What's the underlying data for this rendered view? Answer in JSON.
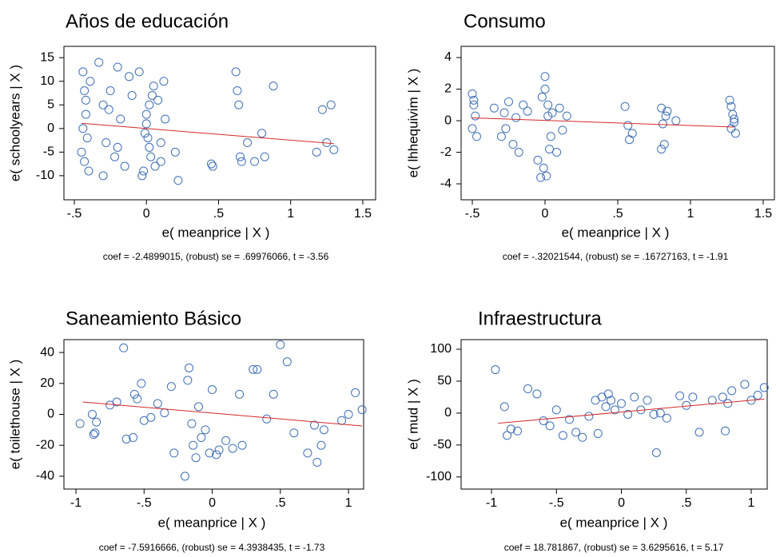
{
  "chart_data": [
    {
      "type": "scatter",
      "title": "Años de educación",
      "x_label": "e( meanprice | X )",
      "y_label": "e( schoolyears | X )",
      "note": "coef = -2.4899015, (robust) se = .69976066, t = -3.56",
      "color": "#3f6fb6",
      "x": [
        -0.44,
        -0.43,
        -0.42,
        -0.41,
        -0.45,
        -0.4,
        -0.42,
        -0.43,
        -0.39,
        -0.44,
        -0.33,
        -0.3,
        -0.28,
        -0.25,
        -0.2,
        -0.22,
        -0.18,
        -0.15,
        -0.12,
        -0.3,
        -0.26,
        -0.2,
        -0.1,
        -0.05,
        -0.02,
        0,
        0.01,
        0.02,
        0.03,
        0.05,
        -0.03,
        0,
        0.02,
        0.04,
        0.06,
        -0.01,
        0.08,
        0.1,
        0.12,
        0.1,
        0.13,
        0.2,
        0.22,
        0.45,
        0.46,
        0.62,
        0.63,
        0.64,
        0.65,
        0.66,
        0.7,
        0.75,
        0.8,
        0.82,
        0.88,
        1.18,
        1.22,
        1.28,
        1.3,
        1.25
      ],
      "y": [
        12,
        8,
        3,
        -2,
        -5,
        -9,
        6,
        -7,
        10,
        0,
        14,
        5,
        -3,
        8,
        13,
        -6,
        2,
        -8,
        11,
        -10,
        4,
        -4,
        7,
        12,
        -9,
        1,
        -2,
        5,
        -6,
        9,
        -10,
        3,
        -4,
        7,
        -8,
        -1,
        6,
        -3,
        10,
        -7,
        2,
        -5,
        -11,
        -7.5,
        -8,
        12,
        8,
        5,
        -6,
        -7,
        -3,
        -7,
        -1,
        -6,
        9,
        -5,
        4,
        5,
        -4.5,
        -3
      ],
      "fit_line": {
        "color": "#d62728",
        "x": [
          -0.45,
          1.3
        ],
        "y": [
          1.1,
          -3.2
        ]
      },
      "xlim": [
        -0.572,
        1.589
      ],
      "ylim": [
        -15.1,
        17.4
      ],
      "xticks": [
        {
          "value": -0.5,
          "label": "-.5"
        },
        0,
        {
          "value": 0.5,
          "label": ".5"
        },
        1,
        1.5
      ],
      "yticks": [
        -10,
        -5,
        0,
        5,
        10,
        15
      ]
    },
    {
      "type": "scatter",
      "title": "Consumo",
      "x_label": "e( meanprice | X )",
      "y_label": "e( lhhequivim | X )",
      "note": "coef = -.32021544, (robust) se = .16727163, t = -1.91",
      "color": "#3f6fb6",
      "x": [
        -0.5,
        -0.49,
        -0.48,
        -0.5,
        -0.47,
        -0.49,
        -0.35,
        -0.3,
        -0.28,
        -0.25,
        -0.22,
        -0.2,
        -0.18,
        -0.15,
        -0.27,
        -0.12,
        -0.05,
        -0.02,
        0,
        0.01,
        0.02,
        0.03,
        0,
        -0.01,
        0.02,
        0.04,
        -0.03,
        0.05,
        0.08,
        0.1,
        0.12,
        0.15,
        0.55,
        0.57,
        0.58,
        0.6,
        0.8,
        0.81,
        0.82,
        0.83,
        0.8,
        0.84,
        0.9,
        1.27,
        1.28,
        1.3,
        1.29,
        1.31,
        1.28,
        1.3
      ],
      "y": [
        1.7,
        1,
        0.3,
        -0.5,
        -1,
        1.3,
        0.8,
        -1,
        0.5,
        1.2,
        -1.5,
        0.2,
        -2,
        1,
        -0.5,
        0.6,
        -2.5,
        1.5,
        2.8,
        -3.5,
        0.3,
        -1.8,
        2,
        -3,
        1,
        -1,
        -3.6,
        0.5,
        -2,
        0.8,
        -0.6,
        0.3,
        0.9,
        -0.3,
        -1.2,
        -0.8,
        0.8,
        -0.2,
        -1.5,
        0.3,
        -1.8,
        0.6,
        0,
        1.3,
        0.9,
        -0.1,
        0.4,
        -0.8,
        -0.5,
        0.1
      ],
      "fit_line": {
        "color": "#d62728",
        "x": [
          -0.5,
          1.3
        ],
        "y": [
          0.18,
          -0.4
        ]
      },
      "xlim": [
        -0.577,
        1.577
      ],
      "ylim": [
        -5.01,
        4.71
      ],
      "xticks": [
        {
          "value": -0.5,
          "label": "-.5"
        },
        0,
        {
          "value": 0.5,
          "label": ".5"
        },
        1,
        1.5
      ],
      "yticks": [
        -4,
        -2,
        0,
        2,
        4
      ]
    },
    {
      "type": "scatter",
      "title": "Saneamiento Básico",
      "x_label": "e( meanprice | X )",
      "y_label": "e( toilethouse | X )",
      "note": "coef = -7.5916666, (robust) se = 4.3938435, t = -1.73",
      "color": "#3f6fb6",
      "x": [
        -0.97,
        -0.88,
        -0.87,
        -0.86,
        -0.85,
        -0.75,
        -0.7,
        -0.65,
        -0.63,
        -0.58,
        -0.57,
        -0.55,
        -0.52,
        -0.5,
        -0.45,
        -0.4,
        -0.35,
        -0.3,
        -0.28,
        -0.2,
        -0.18,
        -0.17,
        -0.15,
        -0.14,
        -0.12,
        -0.1,
        -0.08,
        -0.05,
        -0.02,
        0,
        0.03,
        0.05,
        0.1,
        0.15,
        0.2,
        0.22,
        0.3,
        0.33,
        0.4,
        0.45,
        0.5,
        0.55,
        0.6,
        0.7,
        0.75,
        0.77,
        0.8,
        0.82,
        0.95,
        1.0,
        1.05,
        1.1
      ],
      "y": [
        -6,
        0,
        -13,
        -12,
        -5,
        6,
        8,
        43,
        -16,
        -15,
        13,
        10,
        20,
        -4,
        -2,
        7,
        1,
        18,
        -25,
        -40,
        22,
        30,
        -6,
        -20,
        -28,
        5,
        -15,
        -10,
        -25,
        16,
        -26,
        -23,
        -17,
        -22,
        13,
        -20,
        29,
        29,
        -3,
        13,
        45,
        34,
        -12,
        -25,
        -7,
        -31,
        -20,
        -10,
        -4,
        0,
        14,
        3
      ],
      "fit_line": {
        "color": "#d62728",
        "x": [
          -0.95,
          1.1
        ],
        "y": [
          8,
          -7.5
        ]
      },
      "xlim": [
        -1.088,
        1.111
      ],
      "ylim": [
        -48.3,
        48.3
      ],
      "xticks": [
        -1,
        {
          "value": -0.5,
          "label": "-.5"
        },
        0,
        {
          "value": 0.5,
          "label": ".5"
        },
        1
      ],
      "yticks": [
        -40,
        -20,
        0,
        20,
        40
      ]
    },
    {
      "type": "scatter",
      "title": "Infraestructura",
      "x_label": "e( meanprice | X )",
      "y_label": "e( mud | X )",
      "note": "coef = 18.781867, (robust) se = 3.6295616, t = 5.17",
      "color": "#3f6fb6",
      "x": [
        -0.97,
        -0.9,
        -0.88,
        -0.85,
        -0.8,
        -0.72,
        -0.65,
        -0.6,
        -0.55,
        -0.5,
        -0.45,
        -0.4,
        -0.35,
        -0.3,
        -0.25,
        -0.2,
        -0.18,
        -0.15,
        -0.12,
        -0.1,
        -0.08,
        -0.05,
        0,
        0.05,
        0.1,
        0.15,
        0.2,
        0.25,
        0.27,
        0.3,
        0.35,
        0.45,
        0.5,
        0.55,
        0.6,
        0.7,
        0.78,
        0.8,
        0.82,
        0.85,
        0.95,
        1.0,
        1.05,
        1.1
      ],
      "y": [
        68,
        10,
        -35,
        -25,
        -28,
        38,
        30,
        -12,
        -20,
        5,
        -35,
        -10,
        -30,
        -38,
        -5,
        20,
        -32,
        25,
        10,
        30,
        20,
        5,
        15,
        -2,
        25,
        5,
        20,
        -2,
        -62,
        0,
        -8,
        27,
        12,
        25,
        -30,
        20,
        25,
        -28,
        15,
        35,
        45,
        20,
        28,
        40
      ],
      "fit_line": {
        "color": "#d62728",
        "x": [
          -0.95,
          1.1
        ],
        "y": [
          -16,
          22
        ]
      },
      "xlim": [
        -1.234,
        1.123
      ],
      "ylim": [
        -119,
        115
      ],
      "xticks": [
        -1,
        {
          "value": -0.5,
          "label": "-.5"
        },
        0,
        {
          "value": 0.5,
          "label": ".5"
        },
        1
      ],
      "yticks": [
        -100,
        -50,
        0,
        50,
        100
      ]
    }
  ]
}
